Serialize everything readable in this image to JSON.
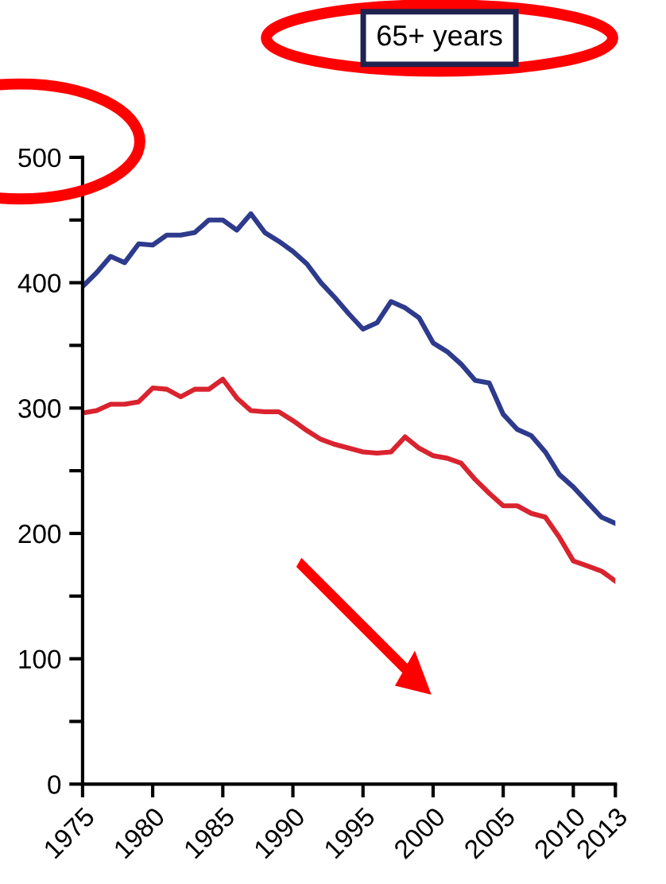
{
  "chart_data": {
    "type": "line",
    "title": "65+ years",
    "x": [
      1975,
      1976,
      1977,
      1978,
      1979,
      1980,
      1981,
      1982,
      1983,
      1984,
      1985,
      1986,
      1987,
      1988,
      1989,
      1990,
      1991,
      1992,
      1993,
      1994,
      1995,
      1996,
      1997,
      1998,
      1999,
      2000,
      2001,
      2002,
      2003,
      2004,
      2005,
      2006,
      2007,
      2008,
      2009,
      2010,
      2011,
      2012,
      2013
    ],
    "series": [
      {
        "color": "#2e3a8c",
        "values": [
          397,
          408,
          421,
          416,
          431,
          430,
          438,
          438,
          440,
          450,
          450,
          442,
          455,
          440,
          433,
          425,
          415,
          400,
          388,
          375,
          363,
          368,
          385,
          380,
          372,
          352,
          345,
          335,
          322,
          320,
          295,
          283,
          278,
          265,
          247,
          237,
          225,
          213,
          208
        ]
      },
      {
        "color": "#d9232e",
        "values": [
          296,
          298,
          303,
          303,
          305,
          316,
          315,
          309,
          315,
          315,
          323,
          308,
          298,
          297,
          297,
          290,
          282,
          275,
          271,
          268,
          265,
          264,
          265,
          277,
          268,
          262,
          260,
          256,
          243,
          232,
          222,
          222,
          216,
          213,
          197,
          178,
          174,
          170,
          162
        ]
      }
    ],
    "xlim": [
      1975,
      2013
    ],
    "xticks": [
      1975,
      1980,
      1985,
      1990,
      1995,
      2000,
      2005,
      2010,
      2013
    ],
    "ylim": [
      0,
      500
    ],
    "yticks": [
      0,
      {
        "value": 50,
        "label": null
      },
      100,
      {
        "value": 150,
        "label": null
      },
      200,
      {
        "value": 250,
        "label": null
      },
      300,
      {
        "value": 350,
        "label": null
      },
      400,
      {
        "value": 450,
        "label": null
      },
      500
    ],
    "grid": false,
    "marker": "none",
    "line_style": "solid"
  }
}
